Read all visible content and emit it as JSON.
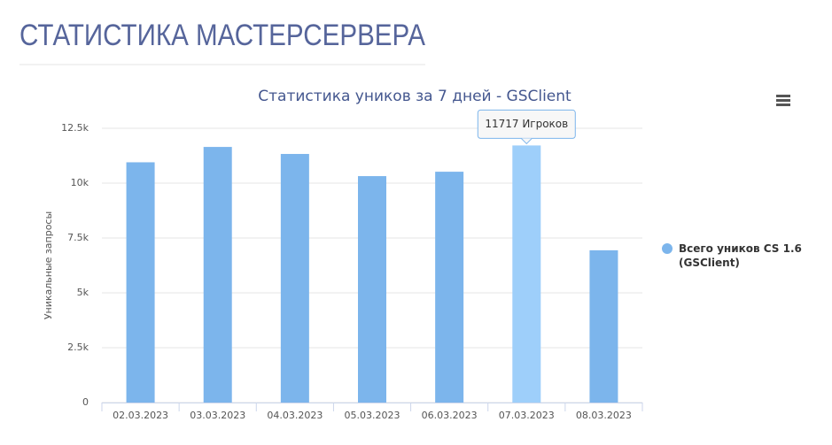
{
  "page": {
    "heading": "СТАТИСТИКА МАСТЕРСЕРВЕРА"
  },
  "chart_data": {
    "type": "bar",
    "title": "Статистика уников за 7 дней - GSClient",
    "y_label": "Уникальные запросы",
    "categories": [
      "02.03.2023",
      "03.03.2023",
      "04.03.2023",
      "05.03.2023",
      "06.03.2023",
      "07.03.2023",
      "08.03.2023"
    ],
    "series": [
      {
        "name": "Всего уников CS 1.6 (GSClient)",
        "color": "#7cb5ec",
        "highlight_color": "#9ecffa",
        "values": [
          10950,
          11650,
          11330,
          10320,
          10520,
          11717,
          6940
        ],
        "value_labels": [
          null,
          null,
          null,
          null,
          null,
          "11717 Игроков",
          null
        ]
      }
    ],
    "ylim": [
      0,
      12500
    ],
    "yticks": [
      0,
      {
        "value": 2500,
        "label": "2.5k"
      },
      {
        "value": 5000,
        "label": "5k"
      },
      {
        "value": 7500,
        "label": "7.5k"
      },
      {
        "value": 10000,
        "label": "10k"
      },
      {
        "value": 12500,
        "label": "12.5k"
      }
    ],
    "grid": true,
    "legend": "right"
  }
}
